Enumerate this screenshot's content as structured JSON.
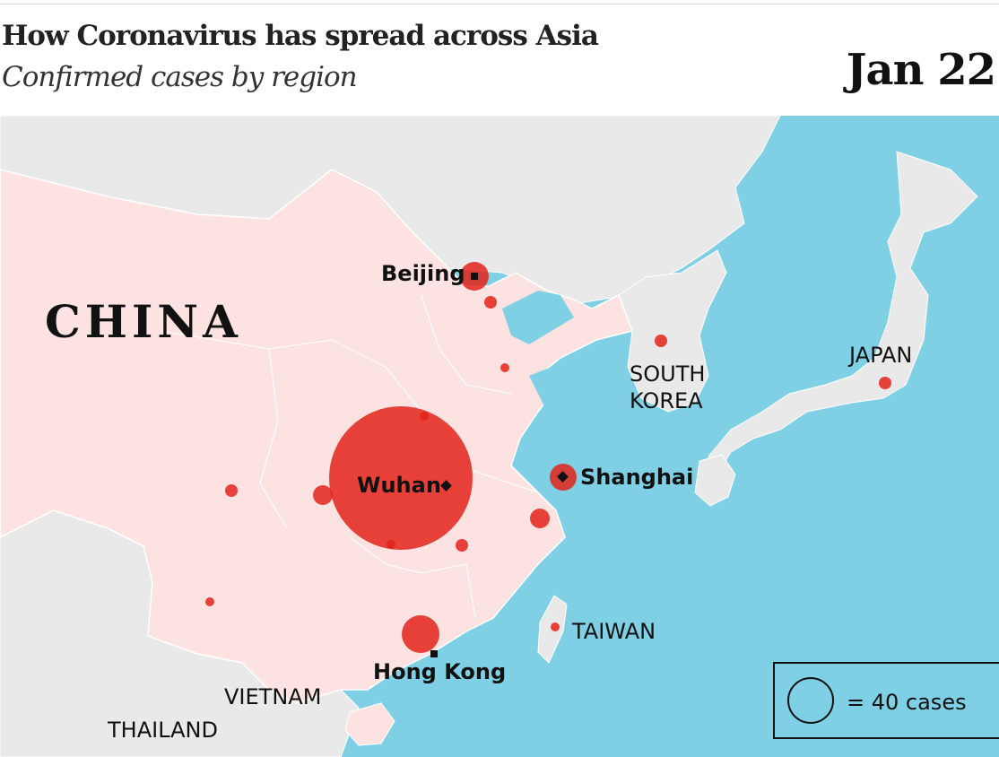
{
  "header": {
    "title": "How Coronavirus has spread across Asia",
    "subtitle": "Confirmed cases by region",
    "date": "Jan 22"
  },
  "labels": {
    "china": "CHINA",
    "beijing": "Beijing",
    "wuhan": "Wuhan",
    "shanghai": "Shanghai",
    "hong_kong": "Hong Kong",
    "south_korea_line1": "SOUTH",
    "south_korea_line2": "KOREA",
    "japan": "JAPAN",
    "taiwan": "TAIWAN",
    "vietnam": "VIETNAM",
    "thailand": "THAILAND"
  },
  "legend": {
    "label": "= 40 cases",
    "reference_cases": 40
  },
  "colors": {
    "sea": "#7fd0e5",
    "china_land": "#fce3e2",
    "other_land": "#e9e9e9",
    "case_bubble": "#e2231a",
    "text": "#111111"
  }
}
